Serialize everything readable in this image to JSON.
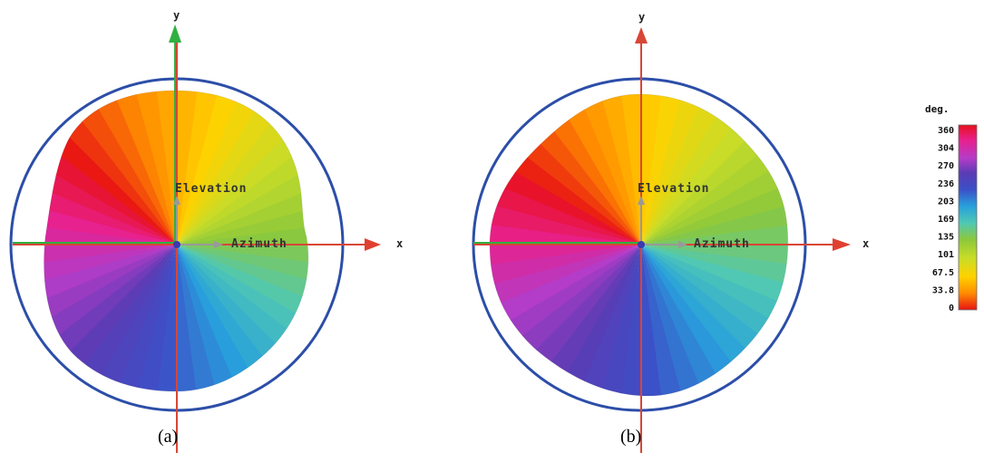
{
  "figure": {
    "panels": [
      {
        "id": "a",
        "caption": "(a)",
        "x_axis_letter": "x",
        "y_axis_letter": "y",
        "elevation_label": "Elevation",
        "azimuth_label": "Azimuth"
      },
      {
        "id": "b",
        "caption": "(b)",
        "x_axis_letter": "x",
        "y_axis_letter": "y",
        "elevation_label": "Elevation",
        "azimuth_label": "Azimuth"
      }
    ],
    "legend": {
      "title": "deg.",
      "ticks": [
        "360",
        "304",
        "270",
        "236",
        "203",
        "169",
        "135",
        "101",
        "67.5",
        "33.8",
        "0"
      ],
      "colors_top_to_bottom": [
        "#e8101c",
        "#e8208c",
        "#b43cc8",
        "#5a3cb4",
        "#3c50c8",
        "#28a0dc",
        "#50c8b4",
        "#8cc83c",
        "#c8dc28",
        "#ffd200",
        "#ff8c00",
        "#e81414"
      ]
    },
    "colors": {
      "circle": "#2c4ea8",
      "x_axis": "#e04030",
      "y_axis": "#30b040",
      "z_axis": "#a0a0a0"
    }
  }
}
